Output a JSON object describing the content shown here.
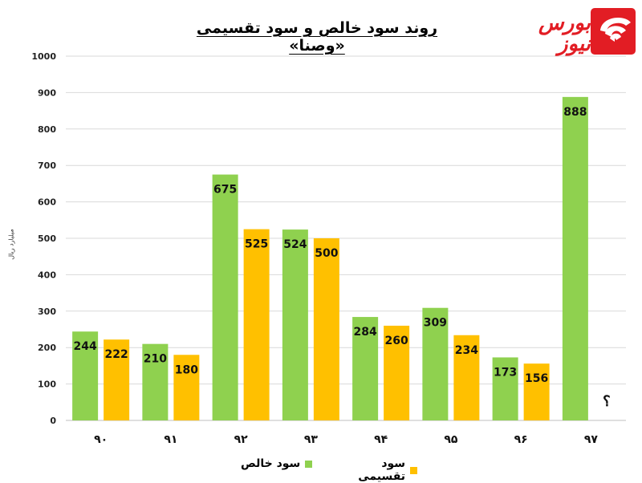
{
  "title": "روند سود خالص و سود تقسیمی «وصنا»",
  "logo": {
    "text": "بورس نیوز",
    "brand_color": "#e21d24"
  },
  "chart_data": {
    "type": "bar",
    "title": "روند سود خالص و سود تقسیمی «وصنا»",
    "ylabel": "میلیارد ریال",
    "xlabel": "",
    "ylim": [
      0,
      1000
    ],
    "y_ticks": [
      "0",
      "100",
      "200",
      "300",
      "400",
      "500",
      "600",
      "700",
      "800",
      "900",
      "1000"
    ],
    "grid": true,
    "legend_position": "bottom",
    "categories": [
      "۹۰",
      "۹۱",
      "۹۲",
      "۹۳",
      "۹۴",
      "۹۵",
      "۹۶",
      "۹۷"
    ],
    "series": [
      {
        "name": "سود خالص",
        "color": "#8fd14f",
        "values": [
          244,
          210,
          675,
          524,
          284,
          309,
          173,
          888
        ],
        "labels": [
          "244",
          "210",
          "675",
          "524",
          "284",
          "309",
          "173",
          "888"
        ]
      },
      {
        "name": "سود تقسیمی",
        "color": "#ffc000",
        "values": [
          222,
          180,
          525,
          500,
          260,
          234,
          156,
          null
        ],
        "labels": [
          "222",
          "180",
          "525",
          "500",
          "260",
          "234",
          "156",
          "؟"
        ]
      }
    ]
  }
}
